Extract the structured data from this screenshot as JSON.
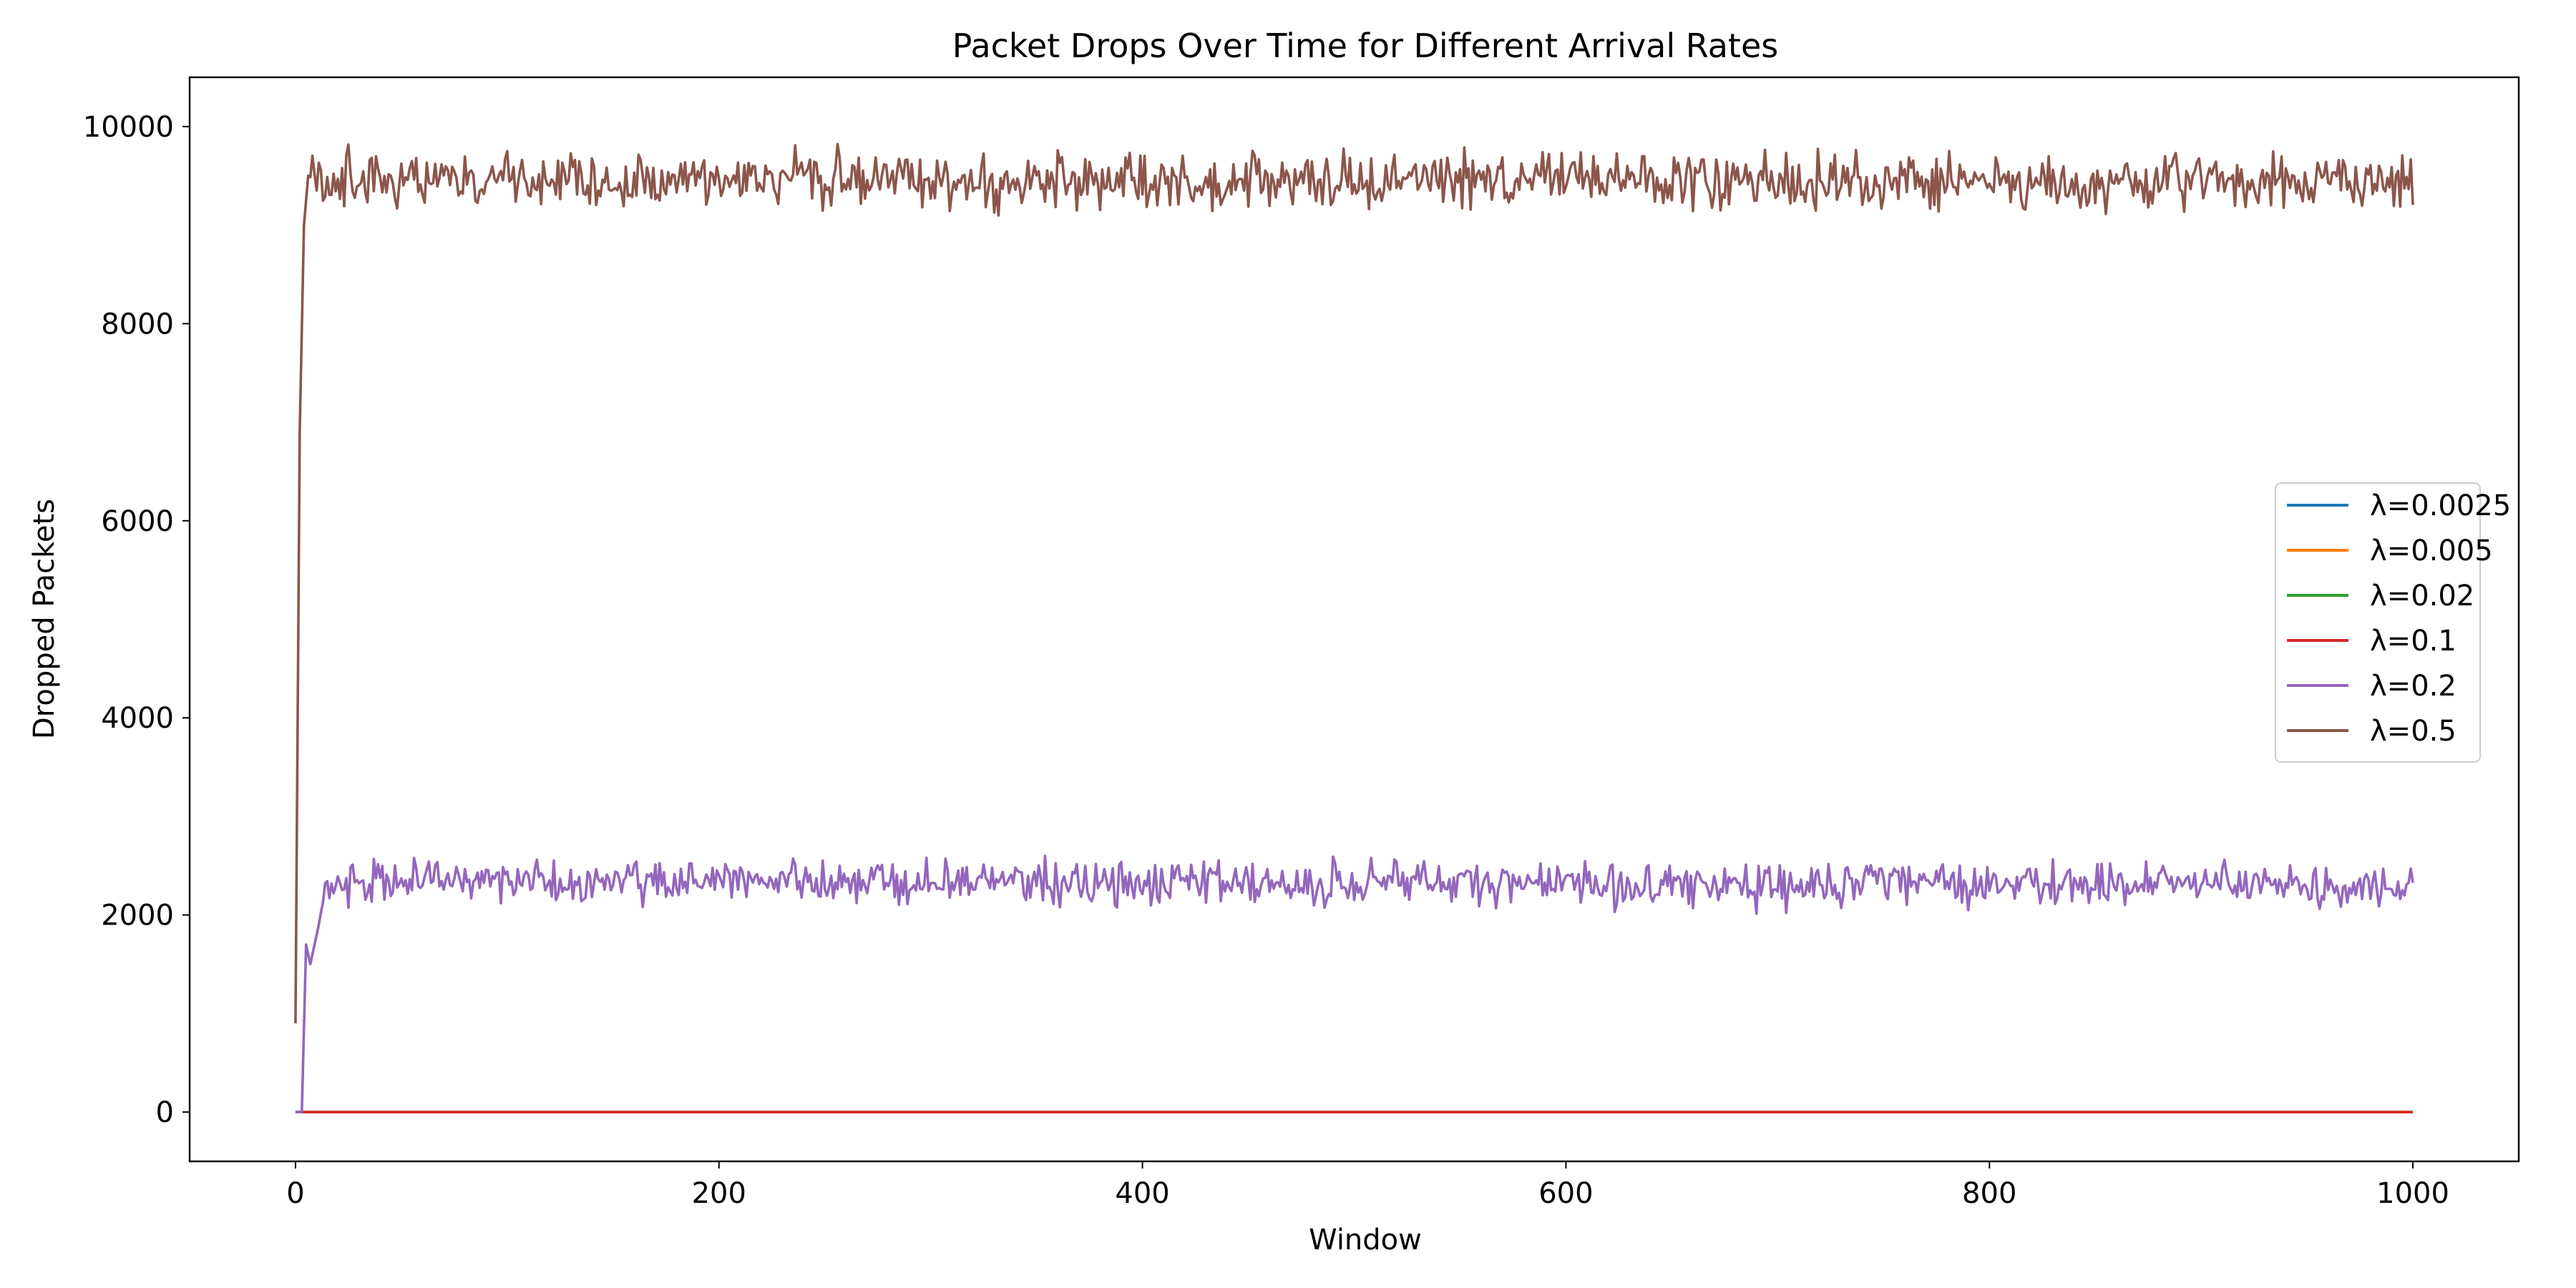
{
  "chart_data": {
    "type": "line",
    "title": "Packet Drops Over Time for Different Arrival Rates",
    "xlabel": "Window",
    "ylabel": "Dropped Packets",
    "xlim": [
      -50,
      1050
    ],
    "ylim": [
      -500,
      10500
    ],
    "xticks": [
      0,
      200,
      400,
      600,
      800,
      1000
    ],
    "yticks": [
      0,
      2000,
      4000,
      6000,
      8000,
      10000
    ],
    "grid": false,
    "legend_position": "center-right",
    "series": [
      {
        "name": "λ=0.0025",
        "color": "#1f77b4",
        "base_points": [
          [
            0,
            0
          ],
          [
            1000,
            0
          ]
        ],
        "noise_amplitude": 0
      },
      {
        "name": "λ=0.005",
        "color": "#ff7f0e",
        "base_points": [
          [
            0,
            0
          ],
          [
            1000,
            0
          ]
        ],
        "noise_amplitude": 0
      },
      {
        "name": "λ=0.02",
        "color": "#2ca02c",
        "base_points": [
          [
            0,
            0
          ],
          [
            1000,
            0
          ]
        ],
        "noise_amplitude": 0
      },
      {
        "name": "λ=0.1",
        "color": "#d62728",
        "base_points": [
          [
            0,
            0
          ],
          [
            1000,
            0
          ]
        ],
        "noise_amplitude": 0
      },
      {
        "name": "λ=0.2",
        "color": "#9467bd",
        "base_points": [
          [
            0,
            0
          ],
          [
            3,
            0
          ],
          [
            5,
            1700
          ],
          [
            7,
            1500
          ],
          [
            10,
            1800
          ],
          [
            15,
            2300
          ],
          [
            20,
            2350
          ],
          [
            1000,
            2300
          ]
        ],
        "noise_start": 12,
        "noise_amplitude": 320
      },
      {
        "name": "λ=0.5",
        "color": "#8c564b",
        "base_points": [
          [
            0,
            900
          ],
          [
            2,
            6900
          ],
          [
            4,
            9000
          ],
          [
            6,
            9500
          ],
          [
            10,
            9450
          ],
          [
            1000,
            9450
          ]
        ],
        "noise_start": 8,
        "noise_amplitude": 420
      }
    ]
  }
}
